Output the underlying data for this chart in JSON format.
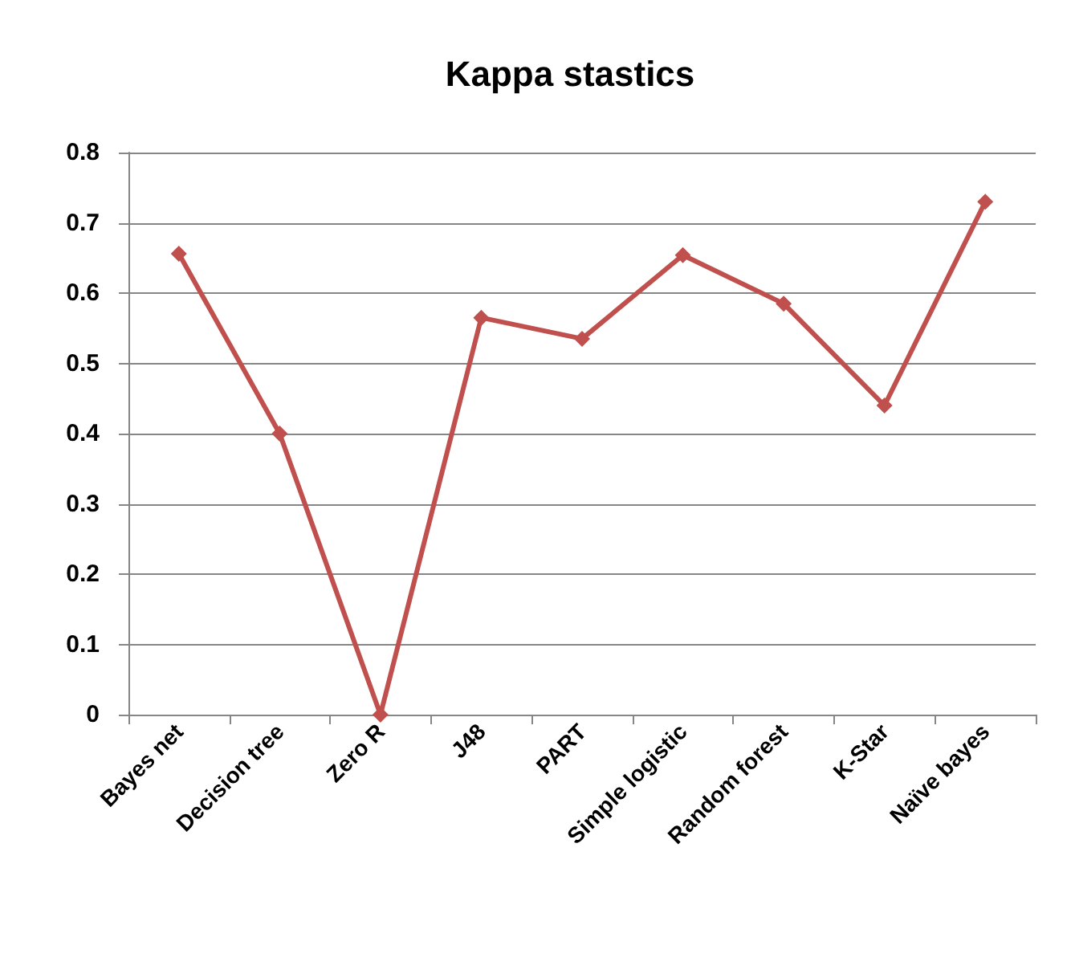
{
  "chart_data": {
    "type": "line",
    "title": "Kappa stastics",
    "categories": [
      "Bayes net",
      "Decision tree",
      "Zero R",
      "J48",
      "PART",
      "Simple logistic",
      "Random forest",
      "K-Star",
      "Naïve bayes"
    ],
    "values": [
      0.656,
      0.4,
      0,
      0.565,
      0.535,
      0.654,
      0.585,
      0.44,
      0.73
    ],
    "color": "#c0504d",
    "marker": "diamond",
    "line_style": "solid",
    "ylim": [
      0,
      0.8
    ],
    "yticks": [
      0,
      0.1,
      0.2,
      0.3,
      0.4,
      0.5,
      0.6,
      0.7,
      0.8
    ],
    "grid": "y"
  }
}
